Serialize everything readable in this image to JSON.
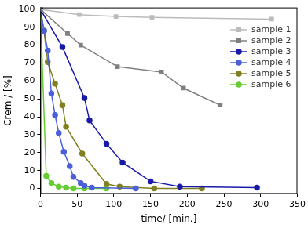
{
  "chart_data": {
    "type": "line",
    "x_label": "time/ [min.]",
    "y_label": "Crem / [%]",
    "xlim": [
      0,
      350
    ],
    "xticks": [
      0,
      50,
      100,
      150,
      200,
      250,
      300,
      350
    ],
    "ylim": [
      -3,
      101
    ],
    "yticks": [
      0,
      10,
      20,
      30,
      40,
      50,
      60,
      70,
      80,
      90,
      100
    ],
    "grid": false,
    "legend": "upper right",
    "series": [
      {
        "name": "sample 1",
        "color": "#bbbbbb",
        "marker": "square",
        "x": [
          0,
          53,
          103,
          152,
          315
        ],
        "values": [
          100,
          97,
          96,
          95.5,
          94.5
        ]
      },
      {
        "name": "sample 2",
        "color": "#808080",
        "marker": "square",
        "x": [
          0,
          37,
          55,
          105,
          165,
          195,
          245
        ],
        "values": [
          100,
          86.5,
          80,
          68,
          65,
          56,
          46.5
        ]
      },
      {
        "name": "sample 3",
        "color": "#1a1aa8",
        "marker": "circle",
        "x": [
          0,
          30,
          60,
          67,
          90,
          112,
          150,
          190,
          295
        ],
        "values": [
          100,
          79,
          50.5,
          38,
          25,
          14.5,
          4,
          1,
          0.5
        ]
      },
      {
        "name": "sample 4",
        "color": "#4a5fd8",
        "marker": "circle",
        "x": [
          0,
          5,
          10,
          15,
          20,
          25,
          32,
          40,
          45,
          55,
          60,
          70,
          130
        ],
        "values": [
          100,
          88,
          77,
          53,
          41,
          31,
          20.5,
          12.5,
          6.5,
          3,
          1.5,
          0.5,
          0
        ]
      },
      {
        "name": "sample 5",
        "color": "#808020",
        "marker": "circle",
        "x": [
          0,
          5,
          10,
          20,
          30,
          35,
          57,
          90,
          108,
          155,
          220
        ],
        "values": [
          100,
          88,
          70.5,
          58.5,
          46.5,
          34.5,
          19.5,
          2.5,
          1,
          0,
          0
        ]
      },
      {
        "name": "sample 6",
        "color": "#66cc33",
        "marker": "circle",
        "x": [
          0,
          8,
          15,
          25,
          35,
          45,
          60,
          90
        ],
        "values": [
          100,
          7,
          3,
          1,
          0.5,
          0,
          0,
          0
        ]
      }
    ]
  }
}
